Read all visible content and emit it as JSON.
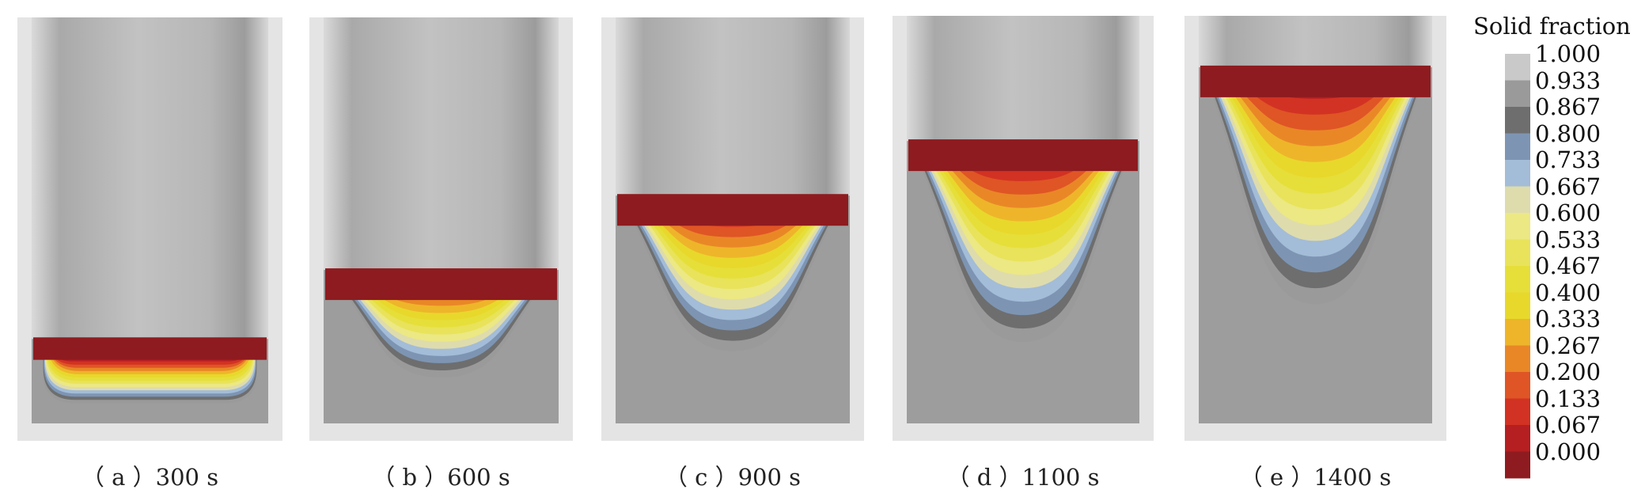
{
  "figure": {
    "panels": [
      {
        "caption": "（ a ）300 s",
        "time_s": 300,
        "pool_top_frac": 0.792,
        "pool_bottom_frac": 0.95
      },
      {
        "caption": "（ b ）600 s",
        "time_s": 600,
        "pool_top_frac": 0.622,
        "pool_bottom_frac": 0.887
      },
      {
        "caption": "（ c ）900 s",
        "time_s": 900,
        "pool_top_frac": 0.439,
        "pool_bottom_frac": 0.822
      },
      {
        "caption": "（ d ）1100 s",
        "time_s": 1100,
        "pool_top_frac": 0.307,
        "pool_bottom_frac": 0.8
      },
      {
        "caption": "（ e ）1400 s",
        "time_s": 1400,
        "pool_top_frac": 0.126,
        "pool_bottom_frac": 0.707
      }
    ],
    "legend": {
      "title": "Solid fraction",
      "ticks": [
        "1.000",
        "0.933",
        "0.867",
        "0.800",
        "0.733",
        "0.667",
        "0.600",
        "0.533",
        "0.467",
        "0.400",
        "0.333",
        "0.267",
        "0.200",
        "0.133",
        "0.067",
        "0.000"
      ],
      "colors": [
        "#c9c9c9",
        "#9a9a9a",
        "#6e6e6e",
        "#7d95b3",
        "#a3bcd8",
        "#dedcad",
        "#ece884",
        "#e8e35a",
        "#e6df3a",
        "#e8d82c",
        "#eeb52a",
        "#e98727",
        "#df5525",
        "#d23223",
        "#b51f22",
        "#8e1b1f"
      ]
    }
  }
}
